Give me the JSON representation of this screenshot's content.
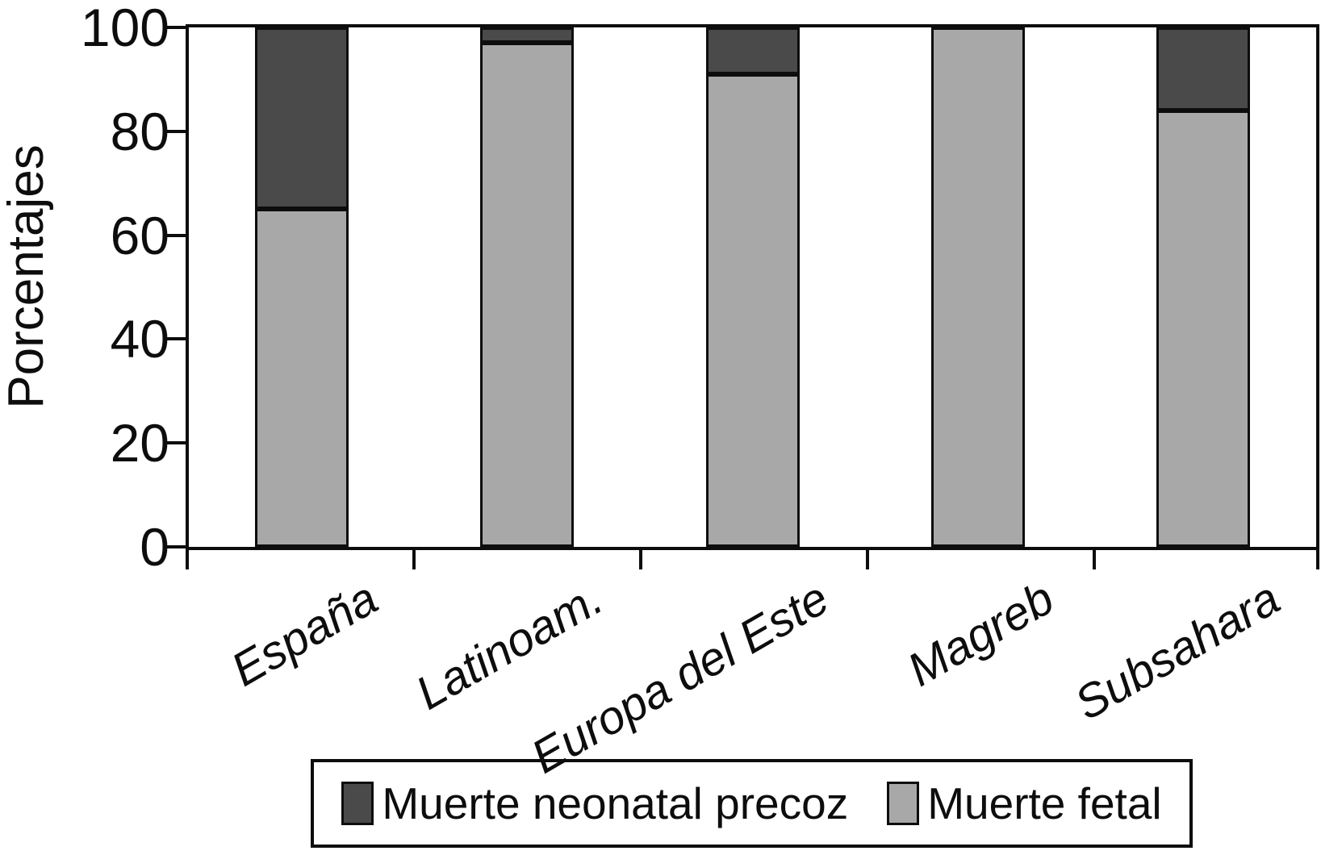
{
  "chart_data": {
    "type": "bar",
    "stacked": true,
    "orientation": "vertical",
    "title": "",
    "xlabel": "",
    "ylabel": "Porcentajes",
    "categories": [
      "España",
      "Latinoam.",
      "Europa del Este",
      "Magreb",
      "Subsahara"
    ],
    "series": [
      {
        "name": "Muerte neonatal precoz",
        "color": "#4a4a4a",
        "values": [
          35,
          3,
          9,
          0,
          16
        ]
      },
      {
        "name": "Muerte fetal",
        "color": "#a8a8a8",
        "values": [
          65,
          97,
          91,
          100,
          84
        ]
      }
    ],
    "stack_bottom_series": "Muerte fetal",
    "ylim": [
      0,
      100
    ],
    "yticks": [
      0,
      20,
      40,
      60,
      80,
      100
    ],
    "grid": false,
    "legend_position": "bottom",
    "axis_color": "#0d0d0d",
    "plot_background": "#ffffff"
  }
}
